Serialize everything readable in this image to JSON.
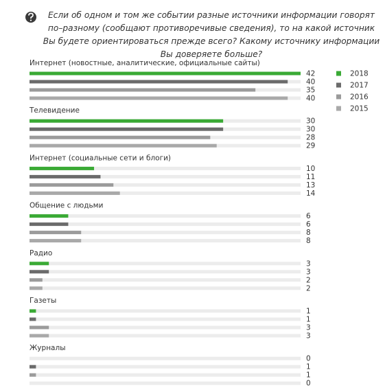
{
  "chart_data": {
    "type": "hbar",
    "title": "Если об одном и том же событии разные источники информации говорят по–разному (сообщают противоречивые сведения), то на какой источник Вы будете ориентироваться прежде всего? Какому источнику информации Вы доверяете больше?",
    "categories": [
      "Интернет (новостные, аналитические, официальные сайты)",
      "Телевидение",
      "Интернет (социальные сети и блоги)",
      "Общение с людьми",
      "Радио",
      "Газеты",
      "Журналы"
    ],
    "series": [
      {
        "name": "2018",
        "color": "#3aaa35",
        "values": [
          42,
          30,
          10,
          6,
          3,
          1,
          0
        ]
      },
      {
        "name": "2017",
        "color": "#6b6b6b",
        "values": [
          40,
          30,
          11,
          6,
          3,
          1,
          1
        ]
      },
      {
        "name": "2016",
        "color": "#9b9b9b",
        "values": [
          35,
          28,
          13,
          8,
          2,
          3,
          1
        ]
      },
      {
        "name": "2015",
        "color": "#a9a9a9",
        "values": [
          40,
          29,
          14,
          8,
          2,
          3,
          0
        ]
      }
    ],
    "xlim": [
      0,
      42
    ]
  }
}
